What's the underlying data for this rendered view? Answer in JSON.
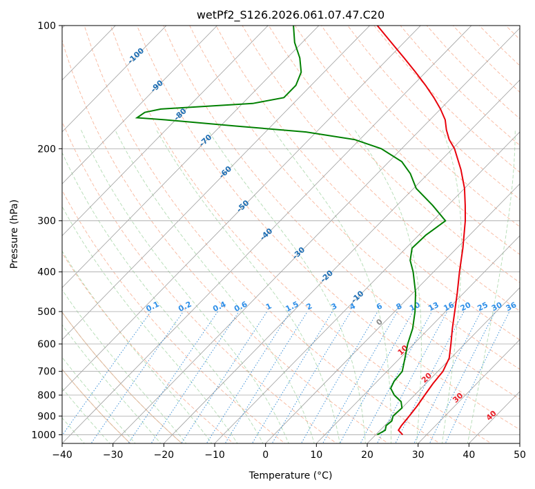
{
  "chart_data": {
    "type": "skew-t",
    "title": "wetPf2_S126.2026.061.07.47.C20",
    "xlabel": "Temperature (°C)",
    "ylabel": "Pressure (hPa)",
    "xlim": [
      -40,
      50
    ],
    "ylim": [
      1050,
      100
    ],
    "x_ticks": [
      "−40",
      "−30",
      "−20",
      "−10",
      "0",
      "10",
      "20",
      "30",
      "40",
      "50"
    ],
    "y_ticks": [
      "100",
      "200",
      "300",
      "400",
      "500",
      "600",
      "700",
      "800",
      "900",
      "1000"
    ],
    "isotherm_labels": [
      "-100",
      "-90",
      "-80",
      "-70",
      "-60",
      "-50",
      "-40",
      "-30",
      "-20",
      "-10"
    ],
    "mixing_ratio_labels": [
      "0.1",
      "0.2",
      "0.4",
      "0.6",
      "1",
      "1.5",
      "2",
      "3",
      "4",
      "6",
      "8",
      "10",
      "13",
      "16",
      "20",
      "25",
      "30",
      "36"
    ],
    "isotherm_labels_warm": [
      "0",
      "10",
      "20",
      "30",
      "40"
    ],
    "series": [
      {
        "name": "Temperature",
        "color": "#e8000b",
        "points": [
          [
            1000,
            25.3
          ],
          [
            975,
            23.6
          ],
          [
            950,
            23.3
          ],
          [
            900,
            23.0
          ],
          [
            850,
            22.6
          ],
          [
            800,
            22.0
          ],
          [
            750,
            21.4
          ],
          [
            700,
            21.0
          ],
          [
            650,
            19.7
          ],
          [
            600,
            17.3
          ],
          [
            550,
            14.6
          ],
          [
            500,
            11.8
          ],
          [
            450,
            8.7
          ],
          [
            400,
            5.1
          ],
          [
            350,
            1.2
          ],
          [
            300,
            -3.6
          ],
          [
            275,
            -6.6
          ],
          [
            250,
            -10.0
          ],
          [
            225,
            -14.3
          ],
          [
            200,
            -19.6
          ],
          [
            190,
            -22.4
          ],
          [
            180,
            -24.8
          ],
          [
            170,
            -27.0
          ],
          [
            160,
            -30.0
          ],
          [
            150,
            -33.5
          ],
          [
            140,
            -37.5
          ],
          [
            130,
            -42.0
          ],
          [
            120,
            -47.0
          ],
          [
            110,
            -52.5
          ],
          [
            100,
            -58.5
          ]
        ]
      },
      {
        "name": "Dewpoint",
        "color": "#008000",
        "points": [
          [
            1000,
            20.3
          ],
          [
            975,
            21.0
          ],
          [
            950,
            20.3
          ],
          [
            925,
            20.5
          ],
          [
            900,
            19.8
          ],
          [
            860,
            20.0
          ],
          [
            830,
            18.6
          ],
          [
            800,
            16.0
          ],
          [
            770,
            14.0
          ],
          [
            740,
            13.3
          ],
          [
            700,
            13.0
          ],
          [
            650,
            11.0
          ],
          [
            600,
            8.8
          ],
          [
            550,
            6.8
          ],
          [
            500,
            4.0
          ],
          [
            450,
            0.5
          ],
          [
            400,
            -4.0
          ],
          [
            375,
            -6.8
          ],
          [
            350,
            -8.8
          ],
          [
            325,
            -8.6
          ],
          [
            300,
            -7.5
          ],
          [
            275,
            -13.0
          ],
          [
            250,
            -19.5
          ],
          [
            230,
            -23.5
          ],
          [
            215,
            -27.5
          ],
          [
            200,
            -34.0
          ],
          [
            190,
            -41.0
          ],
          [
            182,
            -52.0
          ],
          [
            176,
            -67.0
          ],
          [
            170,
            -82.0
          ],
          [
            168,
            -88.0
          ],
          [
            163,
            -87.5
          ],
          [
            160,
            -85.0
          ],
          [
            155,
            -68.0
          ],
          [
            150,
            -63.0
          ],
          [
            140,
            -63.0
          ],
          [
            130,
            -64.5
          ],
          [
            120,
            -67.5
          ],
          [
            110,
            -71.5
          ],
          [
            100,
            -75.0
          ]
        ]
      }
    ]
  }
}
